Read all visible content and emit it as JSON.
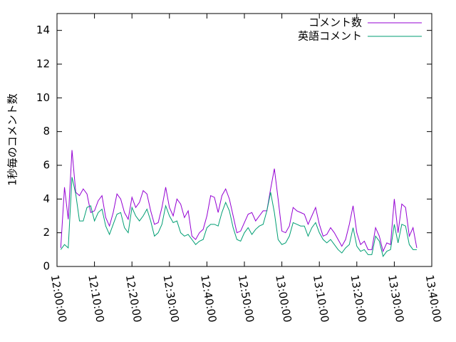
{
  "chart_data": {
    "type": "line",
    "ylabel": "1秒毎のコメント数",
    "x": [
      "12:01:00",
      "12:02:00",
      "12:03:00",
      "12:04:00",
      "12:05:00",
      "12:06:00",
      "12:07:00",
      "12:08:00",
      "12:09:00",
      "12:10:00",
      "12:11:00",
      "12:12:00",
      "12:13:00",
      "12:14:00",
      "12:15:00",
      "12:16:00",
      "12:17:00",
      "12:18:00",
      "12:19:00",
      "12:20:00",
      "12:21:00",
      "12:22:00",
      "12:23:00",
      "12:24:00",
      "12:25:00",
      "12:26:00",
      "12:27:00",
      "12:28:00",
      "12:29:00",
      "12:30:00",
      "12:31:00",
      "12:32:00",
      "12:33:00",
      "12:34:00",
      "12:35:00",
      "12:36:00",
      "12:37:00",
      "12:38:00",
      "12:39:00",
      "12:40:00",
      "12:41:00",
      "12:42:00",
      "12:43:00",
      "12:44:00",
      "12:45:00",
      "12:46:00",
      "12:47:00",
      "12:48:00",
      "12:49:00",
      "12:50:00",
      "12:51:00",
      "12:52:00",
      "12:53:00",
      "12:54:00",
      "12:55:00",
      "12:56:00",
      "12:57:00",
      "12:58:00",
      "12:59:00",
      "13:00:00",
      "13:01:00",
      "13:02:00",
      "13:03:00",
      "13:04:00",
      "13:05:00",
      "13:06:00",
      "13:07:00",
      "13:08:00",
      "13:09:00",
      "13:10:00",
      "13:11:00",
      "13:12:00",
      "13:13:00",
      "13:14:00",
      "13:15:00",
      "13:16:00",
      "13:17:00",
      "13:18:00",
      "13:19:00",
      "13:20:00",
      "13:21:00",
      "13:22:00",
      "13:23:00",
      "13:24:00",
      "13:25:00",
      "13:26:00",
      "13:27:00",
      "13:28:00",
      "13:29:00",
      "13:30:00",
      "13:31:00",
      "13:32:00",
      "13:33:00",
      "13:34:00",
      "13:35:00",
      "13:36:00"
    ],
    "series": [
      {
        "name": "コメント数",
        "color": "#9400d3",
        "values": [
          1.1,
          4.7,
          2.8,
          6.9,
          4.4,
          4.2,
          4.6,
          4.3,
          3.2,
          3.3,
          3.9,
          4.2,
          2.9,
          2.4,
          3.2,
          4.3,
          4.0,
          3.2,
          2.8,
          4.1,
          3.5,
          3.8,
          4.5,
          4.3,
          3.3,
          2.5,
          2.6,
          3.5,
          4.7,
          3.5,
          3.0,
          4.0,
          3.7,
          2.9,
          3.3,
          1.8,
          1.6,
          2.0,
          2.2,
          3.0,
          4.2,
          4.1,
          3.2,
          4.2,
          4.6,
          4.0,
          3.0,
          2.0,
          2.1,
          2.6,
          3.1,
          3.2,
          2.7,
          3.0,
          3.3,
          3.3,
          4.6,
          5.8,
          4.0,
          2.1,
          2.0,
          2.4,
          3.5,
          3.3,
          3.2,
          3.1,
          2.5,
          3.0,
          3.5,
          2.5,
          1.8,
          1.9,
          2.3,
          2.0,
          1.6,
          1.2,
          1.6,
          2.5,
          3.6,
          2.0,
          1.3,
          1.5,
          1.0,
          1.0,
          2.3,
          1.8,
          0.9,
          1.4,
          1.3,
          4.0,
          2.0,
          3.7,
          3.5,
          1.8,
          2.3,
          1.1
        ]
      },
      {
        "name": "英語コメント",
        "color": "#009e73",
        "values": [
          1.0,
          1.3,
          1.1,
          5.3,
          4.3,
          2.7,
          2.7,
          3.5,
          3.6,
          2.7,
          3.2,
          3.4,
          2.4,
          1.9,
          2.5,
          3.1,
          3.2,
          2.3,
          2.0,
          3.5,
          3.0,
          2.7,
          3.0,
          3.4,
          2.7,
          1.8,
          2.0,
          2.5,
          3.6,
          3.0,
          2.6,
          2.7,
          2.0,
          1.8,
          1.9,
          1.6,
          1.3,
          1.5,
          1.6,
          2.3,
          2.5,
          2.5,
          2.4,
          3.2,
          3.8,
          3.3,
          2.3,
          1.6,
          1.5,
          2.0,
          2.3,
          1.9,
          2.2,
          2.4,
          2.5,
          3.3,
          4.4,
          3.2,
          1.6,
          1.3,
          1.4,
          1.8,
          2.6,
          2.5,
          2.4,
          2.4,
          1.8,
          2.3,
          2.6,
          2.0,
          1.6,
          1.4,
          1.6,
          1.3,
          1.0,
          0.8,
          1.1,
          1.3,
          2.3,
          1.2,
          0.9,
          1.0,
          0.7,
          0.7,
          1.8,
          1.5,
          0.6,
          0.9,
          1.0,
          2.5,
          1.4,
          2.5,
          2.4,
          1.3,
          1.0,
          1.0
        ]
      }
    ],
    "xlim": [
      "12:00:00",
      "13:40:00"
    ],
    "xticks": [
      "12:00:00",
      "12:10:00",
      "12:20:00",
      "12:30:00",
      "12:40:00",
      "12:50:00",
      "13:00:00",
      "13:10:00",
      "13:20:00",
      "13:30:00",
      "13:40:00"
    ],
    "ylim": [
      0,
      15
    ],
    "yticks": [
      0,
      2,
      4,
      6,
      8,
      10,
      12,
      14
    ],
    "legend": "top-right"
  }
}
